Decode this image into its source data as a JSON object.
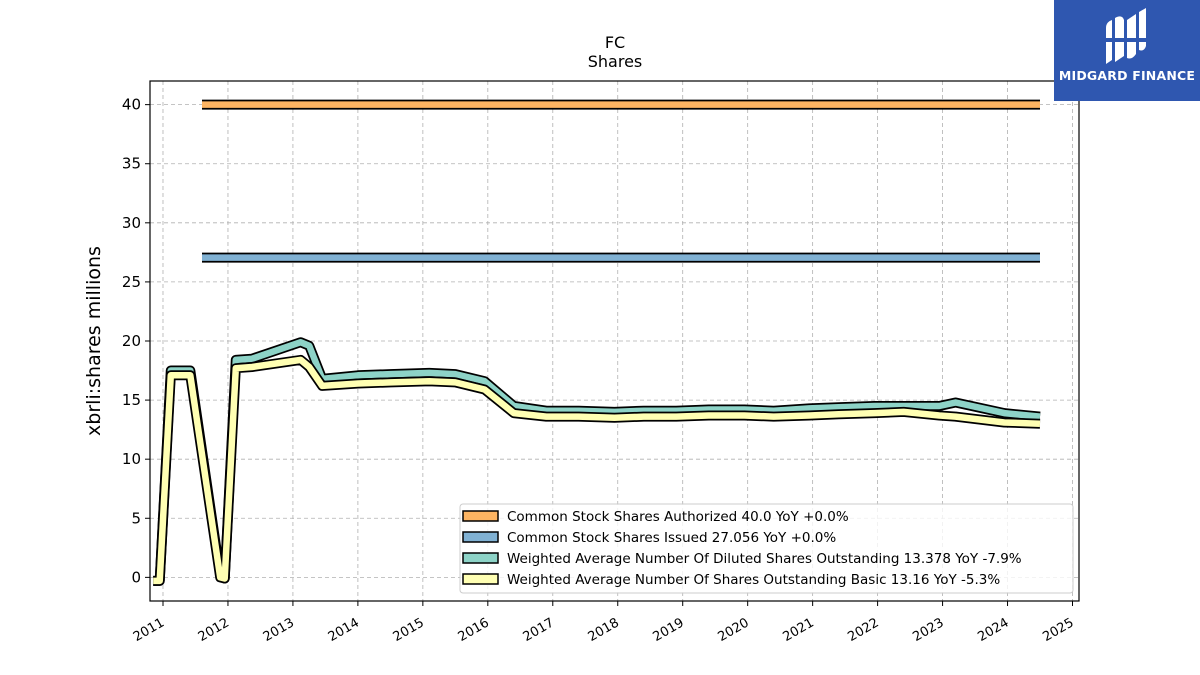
{
  "logo": {
    "text": "MIDGARD FINANCE",
    "bg": "#2f57b0"
  },
  "chart_data": {
    "type": "line",
    "title": "FC",
    "subtitle": "Shares",
    "ylabel": "xbrli:shares millions",
    "xlabel": "",
    "ylim": [
      -2,
      42
    ],
    "xlim": [
      2010.8,
      2025.1
    ],
    "grid": true,
    "legend_position": "lower-right",
    "yticks": [
      0,
      5,
      10,
      15,
      20,
      25,
      30,
      35,
      40
    ],
    "xticks": [
      2011,
      2012,
      2013,
      2014,
      2015,
      2016,
      2017,
      2018,
      2019,
      2020,
      2021,
      2022,
      2023,
      2024,
      2025
    ],
    "xtick_labels": [
      "2011",
      "2012",
      "2013",
      "2014",
      "2015",
      "2016",
      "2017",
      "2018",
      "2019",
      "2020",
      "2021",
      "2022",
      "2023",
      "2024",
      "2025"
    ],
    "series": [
      {
        "name": "Common Stock Shares Authorized",
        "legend": "Common Stock Shares Authorized  40.0 YoY +0.0%",
        "color": "#fdb462",
        "x": [
          2011.6,
          2024.5
        ],
        "y": [
          40.0,
          40.0
        ]
      },
      {
        "name": "Common Stock Shares Issued",
        "legend": "Common Stock Shares Issued  27.056 YoY +0.0%",
        "color": "#80b1d3",
        "x": [
          2011.6,
          2024.5
        ],
        "y": [
          27.056,
          27.056
        ]
      },
      {
        "name": "Weighted Average Number Of Diluted Shares Outstanding",
        "legend": "Weighted Average Number Of Diluted Shares Outstanding  13.378 YoY -7.9%",
        "color": "#8dd3c7",
        "x": [
          2010.85,
          2010.95,
          2011.12,
          2011.42,
          2011.88,
          2011.95,
          2012.12,
          2012.37,
          2013.12,
          2013.25,
          2013.45,
          2014.0,
          2014.5,
          2015.1,
          2015.5,
          2015.95,
          2016.4,
          2016.9,
          2017.4,
          2017.95,
          2018.4,
          2018.9,
          2019.4,
          2019.95,
          2020.4,
          2020.95,
          2021.4,
          2021.95,
          2022.4,
          2022.95,
          2023.2,
          2023.95,
          2024.5
        ],
        "y": [
          -0.3,
          -0.3,
          17.5,
          17.5,
          0.2,
          -0.1,
          18.4,
          18.5,
          19.9,
          19.6,
          16.8,
          17.1,
          17.2,
          17.3,
          17.2,
          16.6,
          14.5,
          14.1,
          14.1,
          14.0,
          14.1,
          14.1,
          14.2,
          14.2,
          14.1,
          14.3,
          14.4,
          14.5,
          14.5,
          14.5,
          14.8,
          13.9,
          13.6
        ]
      },
      {
        "name": "Weighted Average Number Of Shares Outstanding Basic",
        "legend": "Weighted Average Number Of Shares Outstanding Basic  13.16 YoY -5.3%",
        "color": "#ffffb3",
        "x": [
          2010.85,
          2010.95,
          2011.12,
          2011.42,
          2011.88,
          2011.95,
          2012.12,
          2012.37,
          2013.12,
          2013.25,
          2013.45,
          2014.0,
          2014.5,
          2015.1,
          2015.5,
          2015.95,
          2016.4,
          2016.9,
          2017.4,
          2017.95,
          2018.4,
          2018.9,
          2019.4,
          2019.95,
          2020.4,
          2020.95,
          2021.4,
          2021.95,
          2022.4,
          2022.95,
          2023.2,
          2023.95,
          2024.5
        ],
        "y": [
          -0.3,
          -0.3,
          17.1,
          17.1,
          0.0,
          -0.1,
          17.7,
          17.8,
          18.4,
          17.8,
          16.2,
          16.4,
          16.5,
          16.6,
          16.5,
          15.9,
          13.9,
          13.6,
          13.6,
          13.5,
          13.6,
          13.6,
          13.7,
          13.7,
          13.6,
          13.7,
          13.8,
          13.9,
          14.0,
          13.7,
          13.6,
          13.1,
          13.0
        ]
      }
    ]
  }
}
